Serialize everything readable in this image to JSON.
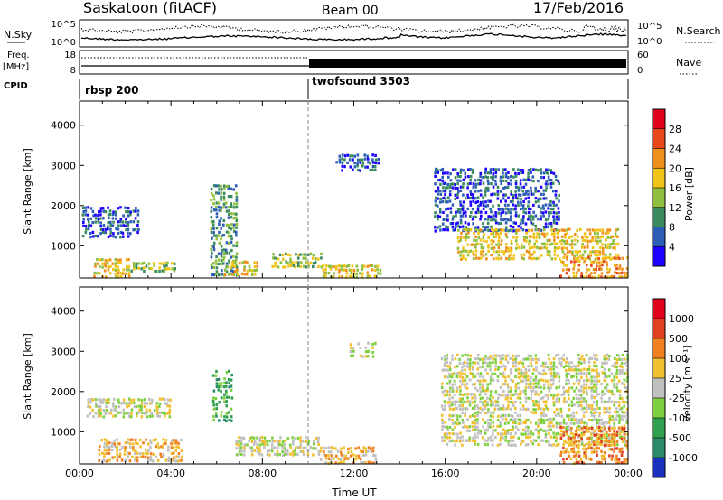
{
  "header": {
    "station": "Saskatoon (fitACF)",
    "beam": "Beam 00",
    "date": "17/Feb/2016"
  },
  "noise_panel": {
    "left_label": "N.Sky",
    "right_label": "N.Search",
    "left_ticks": [
      "10^5",
      "10^0"
    ],
    "right_ticks": [
      "10^5",
      "10^0"
    ]
  },
  "freq_panel": {
    "left_label_1": "Freq.",
    "left_label_2": "[MHz]",
    "right_label": "Nave",
    "left_ticks": [
      "18",
      "8"
    ],
    "right_ticks": [
      "60",
      "0"
    ]
  },
  "cpid": {
    "label": "CPID",
    "segments": [
      {
        "name": "rbsp 200",
        "start_hour": 0
      },
      {
        "name": "twofsound 3503",
        "start_hour": 10.0
      }
    ]
  },
  "chart_data": [
    {
      "type": "heatmap",
      "id": "power",
      "xlabel": "",
      "ylabel": "Slant Range [km]",
      "xlim": [
        0,
        24
      ],
      "ylim": [
        200,
        4600
      ],
      "yticks": [
        1000,
        2000,
        3000,
        4000
      ],
      "colorbar": {
        "label": "Power [dB]",
        "ticks": [
          "4",
          "8",
          "12",
          "16",
          "20",
          "24",
          "28"
        ],
        "colors": [
          "#1e00ff",
          "#2d5db5",
          "#3a8a5f",
          "#8fbf3f",
          "#f0c419",
          "#f0901c",
          "#e8481c",
          "#e0001c"
        ]
      },
      "regions": [
        {
          "t0": 0.1,
          "t1": 2.6,
          "r0": 1250,
          "r1": 2050,
          "level": 1
        },
        {
          "t0": 0.6,
          "t1": 2.2,
          "r0": 250,
          "r1": 750,
          "level": 4
        },
        {
          "t0": 2.2,
          "t1": 4.2,
          "r0": 400,
          "r1": 650,
          "level": 3
        },
        {
          "t0": 5.7,
          "t1": 6.9,
          "r0": 300,
          "r1": 2600,
          "level": 2
        },
        {
          "t0": 6.3,
          "t1": 7.8,
          "r0": 300,
          "r1": 700,
          "level": 4
        },
        {
          "t0": 8.4,
          "t1": 10.6,
          "r0": 500,
          "r1": 900,
          "level": 3
        },
        {
          "t0": 10.6,
          "t1": 13.2,
          "r0": 250,
          "r1": 600,
          "level": 4
        },
        {
          "t0": 11.2,
          "t1": 13.1,
          "r0": 2900,
          "r1": 3350,
          "level": 1
        },
        {
          "t0": 15.5,
          "t1": 21.0,
          "r0": 1400,
          "r1": 3000,
          "level": 1
        },
        {
          "t0": 16.5,
          "t1": 23.6,
          "r0": 700,
          "r1": 1500,
          "level": 4
        },
        {
          "t0": 21.0,
          "t1": 24.0,
          "r0": 250,
          "r1": 800,
          "level": 5
        }
      ]
    },
    {
      "type": "heatmap",
      "id": "velocity",
      "xlabel": "Time UT",
      "ylabel": "Slant Range [km]",
      "xlim": [
        0,
        24
      ],
      "ylim": [
        200,
        4600
      ],
      "yticks": [
        1000,
        2000,
        3000,
        4000
      ],
      "xticks": [
        "00:00",
        "04:00",
        "08:00",
        "12:00",
        "16:00",
        "20:00",
        "00:00"
      ],
      "colorbar": {
        "label": "Velocity [m s⁻¹]",
        "ticks": [
          "1000",
          "500",
          "100",
          "25",
          "-25",
          "-100",
          "-500",
          "-1000"
        ],
        "colors": [
          "#1c30c0",
          "#2a8a6a",
          "#2ea050",
          "#7fd040",
          "#c0c0c0",
          "#f0c030",
          "#f08020",
          "#e04020",
          "#e0001c"
        ]
      },
      "regions": [
        {
          "t0": 0.3,
          "t1": 4.0,
          "r0": 1400,
          "r1": 1900,
          "level": 4
        },
        {
          "t0": 0.8,
          "t1": 4.5,
          "r0": 300,
          "r1": 900,
          "level": 5
        },
        {
          "t0": 5.8,
          "t1": 6.7,
          "r0": 1300,
          "r1": 2600,
          "level": 2
        },
        {
          "t0": 6.8,
          "t1": 10.5,
          "r0": 450,
          "r1": 950,
          "level": 4
        },
        {
          "t0": 10.5,
          "t1": 13.0,
          "r0": 250,
          "r1": 700,
          "level": 5
        },
        {
          "t0": 11.8,
          "t1": 13.0,
          "r0": 2900,
          "r1": 3300,
          "level": 4
        },
        {
          "t0": 15.8,
          "t1": 24.0,
          "r0": 700,
          "r1": 3000,
          "level": 4
        },
        {
          "t0": 21.0,
          "t1": 24.0,
          "r0": 250,
          "r1": 1200,
          "level": 6
        }
      ]
    }
  ]
}
